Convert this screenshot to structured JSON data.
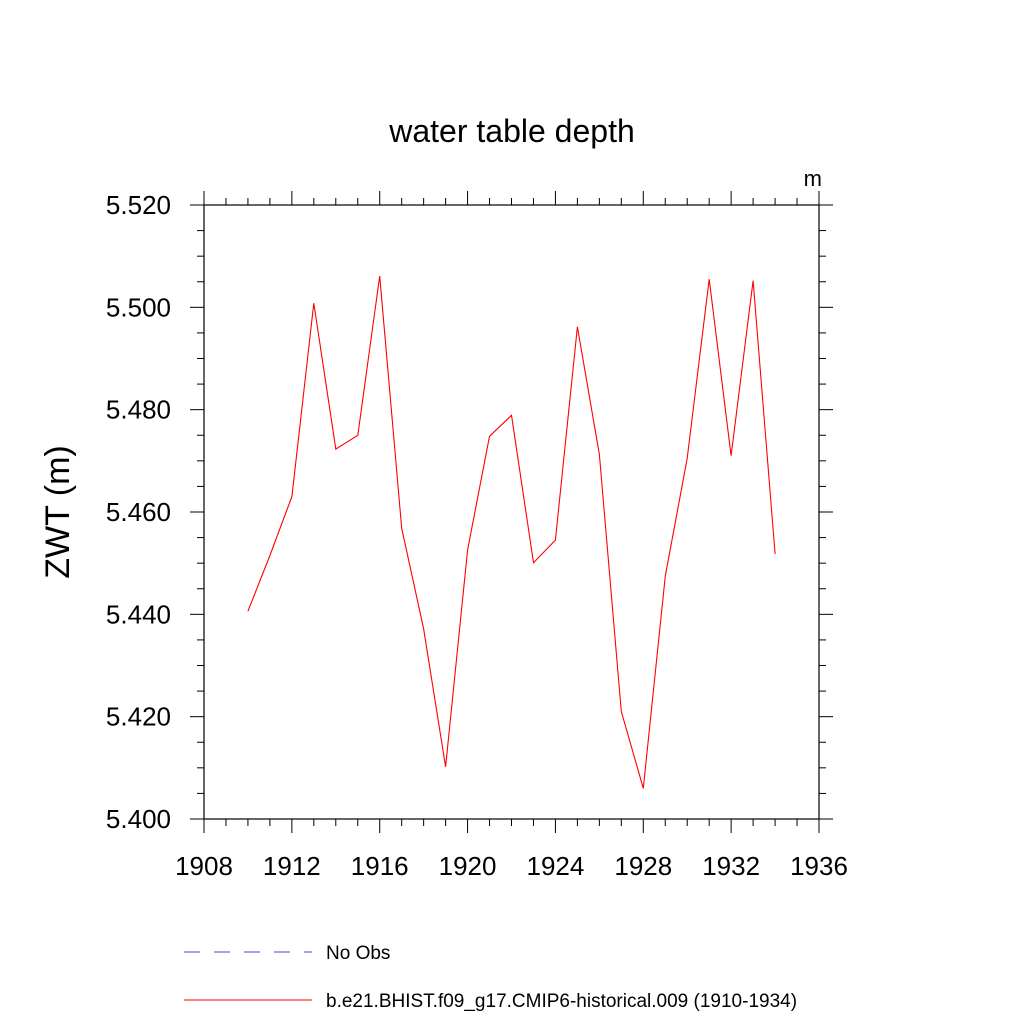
{
  "chart_data": {
    "type": "line",
    "title": "water table depth",
    "ylabel": "ZWT  (m)",
    "units": "m",
    "xlim": [
      1908,
      1936
    ],
    "ylim": [
      5.4,
      5.52
    ],
    "x_ticks": [
      1908,
      1912,
      1916,
      1920,
      1924,
      1928,
      1932,
      1936
    ],
    "x_tick_labels": [
      "1908",
      "1912",
      "1916",
      "1920",
      "1924",
      "1928",
      "1932",
      "1936"
    ],
    "y_ticks": [
      5.4,
      5.42,
      5.44,
      5.46,
      5.48,
      5.5,
      5.52
    ],
    "y_tick_labels": [
      "5.400",
      "5.420",
      "5.440",
      "5.460",
      "5.480",
      "5.500",
      "5.520"
    ],
    "series": [
      {
        "name": "b.e21.BHIST.f09_g17.CMIP6-historical.009 (1910-1934)",
        "color": "#ff0000",
        "x": [
          1910,
          1911,
          1912,
          1913,
          1914,
          1915,
          1916,
          1917,
          1918,
          1919,
          1920,
          1921,
          1922,
          1923,
          1924,
          1925,
          1926,
          1927,
          1928,
          1929,
          1930,
          1931,
          1932,
          1933,
          1934
        ],
        "y": [
          5.4406,
          5.4515,
          5.463,
          5.5008,
          5.4723,
          5.475,
          5.5061,
          5.4568,
          5.4372,
          5.4102,
          5.4526,
          5.4748,
          5.4789,
          5.4501,
          5.4545,
          5.4962,
          5.4712,
          5.421,
          5.406,
          5.4475,
          5.4705,
          5.5055,
          5.471,
          5.5052,
          5.4518
        ]
      }
    ],
    "legend": [
      {
        "label": "No Obs",
        "color": "#4444cc",
        "style": "dashed"
      },
      {
        "label": "b.e21.BHIST.f09_g17.CMIP6-historical.009 (1910-1934)",
        "color": "#ff0000",
        "style": "solid"
      }
    ],
    "legend_position": "bottom",
    "grid": false
  }
}
